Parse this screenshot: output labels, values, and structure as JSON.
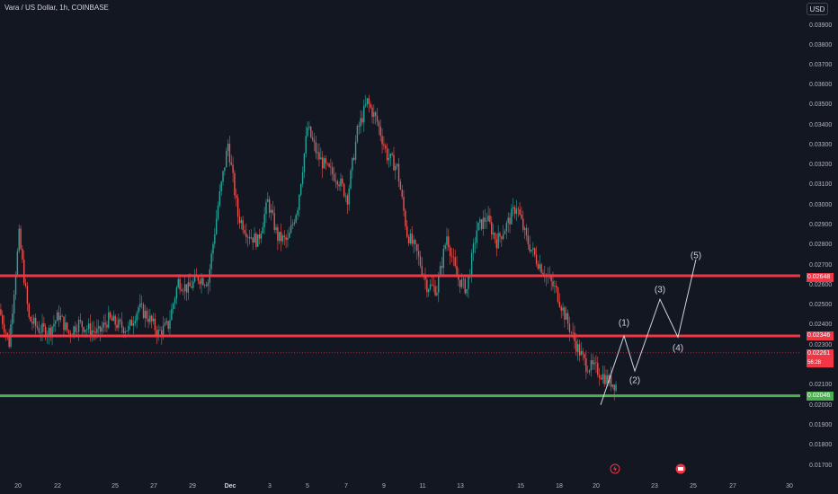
{
  "header": {
    "symbol": "Vara / US Dollar, 1h, COINBASE",
    "currency": "USD"
  },
  "price_axis": {
    "ticks": [
      "0.03900",
      "0.03800",
      "0.03700",
      "0.03600",
      "0.03500",
      "0.03400",
      "0.03300",
      "0.03200",
      "0.03100",
      "0.03000",
      "0.02900",
      "0.02800",
      "0.02700",
      "0.02600",
      "0.02500",
      "0.02400",
      "0.02300",
      "0.02100",
      "0.02000",
      "0.01900",
      "0.01800",
      "0.01700"
    ],
    "resistance_upper": "0.02648",
    "resistance_lower": "0.02346",
    "current_price": "0.02261",
    "countdown": "56:28",
    "support": "0.02046"
  },
  "time_axis": {
    "labels": [
      "20",
      "22",
      "25",
      "27",
      "29",
      "Dec",
      "3",
      "5",
      "7",
      "9",
      "11",
      "13",
      "15",
      "18",
      "20",
      "23",
      "25",
      "27",
      "30"
    ]
  },
  "waves": [
    "(1)",
    "(2)",
    "(3)",
    "(4)",
    "(5)"
  ],
  "colors": {
    "up": "#26a69a",
    "down": "#ef5350",
    "resistance": "#f23645",
    "support": "#4caf50",
    "projection": "#d1d4dc",
    "background": "#131722"
  },
  "chart_data": {
    "type": "candlestick",
    "series": [
      {
        "values": [
          0.0248,
          0.0231,
          0.0285,
          0.0243,
          0.0238,
          0.0237,
          0.0245,
          0.0236,
          0.0241,
          0.0238,
          0.0236,
          0.0243,
          0.024,
          0.0238,
          0.0249,
          0.0244,
          0.0236,
          0.024,
          0.0262,
          0.0258,
          0.0264,
          0.0262,
          0.03,
          0.0331,
          0.0295,
          0.0286,
          0.0282,
          0.0302,
          0.0284,
          0.0282,
          0.03,
          0.0339,
          0.0325,
          0.0318,
          0.0314,
          0.0304,
          0.0337,
          0.0352,
          0.0342,
          0.0325,
          0.0319,
          0.0286,
          0.0276,
          0.026,
          0.0258,
          0.0285,
          0.0264,
          0.0258,
          0.0288,
          0.0294,
          0.0282,
          0.029,
          0.03,
          0.0283,
          0.0273,
          0.0265,
          0.0257,
          0.0243,
          0.023,
          0.022,
          0.0218,
          0.0213,
          0.021
        ]
      }
    ],
    "levels": {
      "resistance_upper": 0.02648,
      "resistance_lower": 0.02346,
      "support": 0.02046,
      "current": 0.02261
    },
    "projection": [
      0.02346,
      0.0217,
      0.0253,
      0.0234,
      0.0273
    ],
    "ylim": [
      0.0166,
      0.0394
    ]
  }
}
